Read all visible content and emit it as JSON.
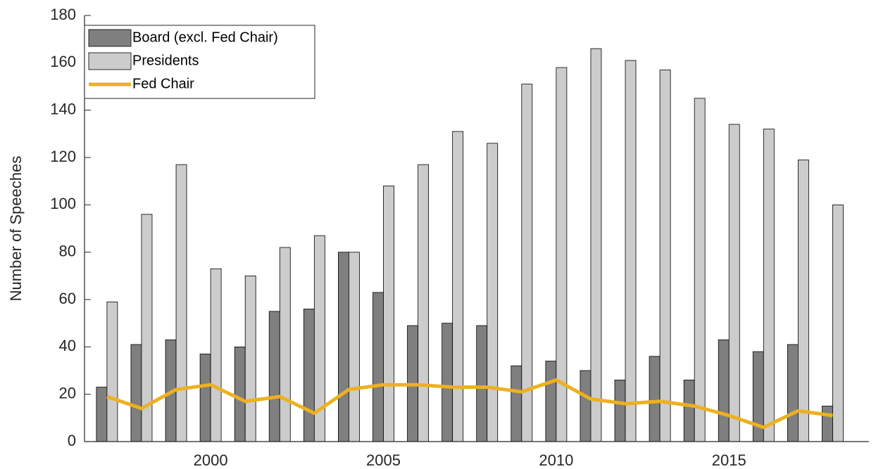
{
  "chart_data": {
    "type": "bar-line",
    "y_label": "Number of Speeches",
    "x": [
      1997,
      1998,
      1999,
      2000,
      2001,
      2002,
      2003,
      2004,
      2005,
      2006,
      2007,
      2008,
      2009,
      2010,
      2011,
      2012,
      2013,
      2014,
      2015,
      2016,
      2017,
      2018
    ],
    "series": [
      {
        "name": "Board (excl. Fed Chair)",
        "kind": "bar",
        "color": "#7f7f7f",
        "values": [
          23,
          41,
          43,
          37,
          40,
          55,
          56,
          80,
          63,
          49,
          50,
          49,
          32,
          34,
          30,
          26,
          36,
          26,
          43,
          38,
          41,
          15
        ]
      },
      {
        "name": "Presidents",
        "kind": "bar",
        "color": "#cccccc",
        "values": [
          59,
          96,
          117,
          73,
          70,
          82,
          87,
          80,
          108,
          117,
          131,
          126,
          151,
          158,
          166,
          161,
          157,
          145,
          134,
          132,
          119,
          100
        ]
      },
      {
        "name": "Fed Chair",
        "kind": "line",
        "color": "#edb120",
        "values": [
          19,
          14,
          22,
          24,
          17,
          19,
          12,
          22,
          24,
          24,
          23,
          23,
          21,
          26,
          18,
          16,
          17,
          15,
          11,
          6,
          13,
          11
        ]
      }
    ],
    "xlim": [
      1996.35,
      2019.05
    ],
    "xticks": [
      2000,
      2005,
      2010,
      2015
    ],
    "ylim": [
      0,
      180
    ],
    "yticks": [
      0,
      20,
      40,
      60,
      80,
      100,
      120,
      140,
      160,
      180
    ],
    "legend": "upper-left"
  }
}
